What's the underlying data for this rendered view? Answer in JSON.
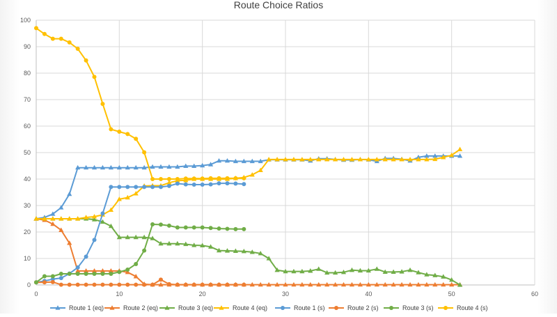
{
  "chart_data": {
    "type": "line",
    "title": "Route Choice Ratios",
    "xlabel": "",
    "ylabel": "",
    "xlim": [
      0,
      60
    ],
    "ylim": [
      0,
      100
    ],
    "xticks": [
      0,
      10,
      20,
      30,
      40,
      50,
      60
    ],
    "yticks": [
      0,
      10,
      20,
      30,
      40,
      50,
      60,
      70,
      80,
      90,
      100
    ],
    "grid": true,
    "legend": "bottom",
    "series": [
      {
        "name": "Route 1 (eq)",
        "color": "#5b9bd5",
        "marker": "triangle",
        "x": [
          0,
          1,
          2,
          3,
          4,
          5,
          6,
          7,
          8,
          9,
          10,
          11,
          12,
          13,
          14,
          15,
          16,
          17,
          18,
          19,
          20,
          21,
          22,
          23,
          24,
          25,
          26,
          27,
          28,
          29,
          30,
          31,
          32,
          33,
          34,
          35,
          36,
          37,
          38,
          39,
          40,
          41,
          42,
          43,
          44,
          45,
          46,
          47,
          48,
          49,
          50,
          51
        ],
        "y": [
          25,
          25.5,
          26.8,
          29.2,
          34.3,
          44.3,
          44.3,
          44.3,
          44.3,
          44.3,
          44.3,
          44.3,
          44.3,
          44.3,
          44.6,
          44.6,
          44.6,
          44.6,
          44.9,
          44.9,
          45.1,
          45.5,
          46.9,
          46.9,
          46.7,
          46.7,
          46.7,
          46.7,
          47.3,
          47.3,
          47.3,
          47.3,
          47.3,
          46.9,
          47.7,
          47.7,
          47.4,
          47.2,
          47.2,
          47.4,
          47.3,
          46.7,
          47.8,
          47.8,
          47.5,
          46.9,
          48.2,
          48.7,
          48.7,
          48.7,
          48.7,
          48.7
        ]
      },
      {
        "name": "Route 2 (eq)",
        "color": "#ed7d31",
        "marker": "triangle",
        "x": [
          0,
          1,
          2,
          3,
          4,
          5,
          6,
          7,
          8,
          9,
          10,
          11,
          12,
          13,
          14,
          15,
          16,
          17,
          18,
          19,
          20,
          21,
          22,
          23,
          24,
          25,
          26,
          27,
          28,
          29,
          30,
          31,
          32,
          33,
          34,
          35,
          36,
          37,
          38,
          39,
          40,
          41,
          42,
          43,
          44,
          45,
          46,
          47,
          48,
          49,
          50,
          51
        ],
        "y": [
          25,
          24.5,
          23,
          20.7,
          15.8,
          5.3,
          5.3,
          5.3,
          5.3,
          5.3,
          5.3,
          4.8,
          3.2,
          0.3,
          0.1,
          0.1,
          0.1,
          0.1,
          0.1,
          0.1,
          0.1,
          0.1,
          0.1,
          0.1,
          0.1,
          0.1,
          0.1,
          0.1,
          0.1,
          0.1,
          0.1,
          0.1,
          0.1,
          0.1,
          0.1,
          0.1,
          0.1,
          0.1,
          0.1,
          0.1,
          0.1,
          0.1,
          0.1,
          0.1,
          0.1,
          0.1,
          0.1,
          0.1,
          0.1,
          0.1,
          0.1,
          0.1
        ]
      },
      {
        "name": "Route 3 (eq)",
        "color": "#70ad47",
        "marker": "triangle",
        "x": [
          0,
          1,
          2,
          3,
          4,
          5,
          6,
          7,
          8,
          9,
          10,
          11,
          12,
          13,
          14,
          15,
          16,
          17,
          18,
          19,
          20,
          21,
          22,
          23,
          24,
          25,
          26,
          27,
          28,
          29,
          30,
          31,
          32,
          33,
          34,
          35,
          36,
          37,
          38,
          39,
          40,
          41,
          42,
          43,
          44,
          45,
          46,
          47,
          48,
          49,
          50,
          51
        ],
        "y": [
          25,
          25,
          25,
          25,
          25,
          25,
          25,
          24.7,
          23.8,
          22.2,
          18,
          18,
          18,
          18,
          17.6,
          15.6,
          15.6,
          15.6,
          15.4,
          15,
          14.9,
          14.4,
          13,
          12.9,
          12.8,
          12.7,
          12.4,
          11.9,
          10,
          5.6,
          5.1,
          5.1,
          5.1,
          5.3,
          6,
          4.6,
          4.6,
          4.8,
          5.6,
          5.4,
          5.4,
          6,
          4.9,
          4.9,
          5,
          5.6,
          4.7,
          3.9,
          3.6,
          3.1,
          1.9,
          0
        ]
      },
      {
        "name": "Route 4 (eq)",
        "color": "#ffc000",
        "marker": "triangle",
        "x": [
          0,
          1,
          2,
          3,
          4,
          5,
          6,
          7,
          8,
          9,
          10,
          11,
          12,
          13,
          14,
          15,
          16,
          17,
          18,
          19,
          20,
          21,
          22,
          23,
          24,
          25,
          26,
          27,
          28,
          29,
          30,
          31,
          32,
          33,
          34,
          35,
          36,
          37,
          38,
          39,
          40,
          41,
          42,
          43,
          44,
          45,
          46,
          47,
          48,
          49,
          50,
          51
        ],
        "y": [
          25,
          25,
          25,
          25,
          25,
          25,
          25.5,
          25.8,
          26.5,
          28.3,
          32.4,
          33,
          34.5,
          37.4,
          37.5,
          37.5,
          38.6,
          39.4,
          39.5,
          40,
          40,
          40,
          40,
          40,
          40.3,
          40.6,
          41.6,
          43.3,
          47.4,
          47.4,
          47.4,
          47.4,
          47.4,
          47.4,
          47.4,
          47.4,
          47.4,
          47.4,
          47.4,
          47.4,
          47.4,
          47.4,
          47.4,
          47.4,
          47.4,
          47.4,
          47.4,
          47.4,
          47.5,
          48.2,
          49,
          51.2
        ]
      },
      {
        "name": "Route 1 (s)",
        "color": "#5b9bd5",
        "marker": "circle",
        "x": [
          0,
          1,
          2,
          3,
          4,
          5,
          6,
          7,
          8,
          9,
          10,
          11,
          12,
          13,
          14,
          15,
          16,
          17,
          18,
          19,
          20,
          21,
          22,
          23,
          24,
          25
        ],
        "y": [
          1,
          1.5,
          2.2,
          2.6,
          4.3,
          6.6,
          10.7,
          17,
          27,
          37,
          37,
          37,
          37,
          37,
          37,
          37,
          37.4,
          38.3,
          38,
          37.9,
          37.9,
          38,
          38.4,
          38.4,
          38.3,
          38.1
        ]
      },
      {
        "name": "Route 2 (s)",
        "color": "#ed7d31",
        "marker": "circle",
        "x": [
          0,
          1,
          2,
          3,
          4,
          5,
          6,
          7,
          8,
          9,
          10,
          11,
          12,
          13,
          14,
          15,
          16,
          17,
          18,
          19,
          20,
          21,
          22,
          23,
          24,
          25
        ],
        "y": [
          1,
          1,
          1.1,
          0.1,
          0.1,
          0.1,
          0.1,
          0.1,
          0.1,
          0.1,
          0.1,
          0.1,
          0.1,
          0.1,
          0.1,
          2,
          0.3,
          0.1,
          0.1,
          0.1,
          0.1,
          0.1,
          0.1,
          0.1,
          0.1,
          0.1
        ]
      },
      {
        "name": "Route 3 (s)",
        "color": "#70ad47",
        "marker": "circle",
        "x": [
          0,
          1,
          2,
          3,
          4,
          5,
          6,
          7,
          8,
          9,
          10,
          11,
          12,
          13,
          14,
          15,
          16,
          17,
          18,
          19,
          20,
          21,
          22,
          23,
          24,
          25
        ],
        "y": [
          1,
          3.3,
          3.3,
          4.2,
          4.2,
          4.2,
          4.2,
          4.2,
          4.2,
          4.2,
          4.9,
          5.8,
          7.9,
          13,
          22.9,
          22.8,
          22.4,
          21.7,
          21.7,
          21.7,
          21.7,
          21.5,
          21.3,
          21.2,
          21.1,
          21.1
        ]
      },
      {
        "name": "Route 4 (s)",
        "color": "#ffc000",
        "marker": "circle",
        "x": [
          0,
          1,
          2,
          3,
          4,
          5,
          6,
          7,
          8,
          9,
          10,
          11,
          12,
          13,
          14,
          15,
          16,
          17,
          18,
          19,
          20,
          21,
          22,
          23,
          24,
          25
        ],
        "y": [
          97,
          94.8,
          93,
          93,
          91.6,
          89.2,
          84.8,
          78.6,
          68.4,
          58.8,
          57.9,
          57,
          55.2,
          50.1,
          40,
          40,
          40,
          40,
          40.2,
          40.2,
          40.2,
          40.3,
          40.3,
          40.3,
          40.3,
          40.3
        ]
      }
    ]
  }
}
